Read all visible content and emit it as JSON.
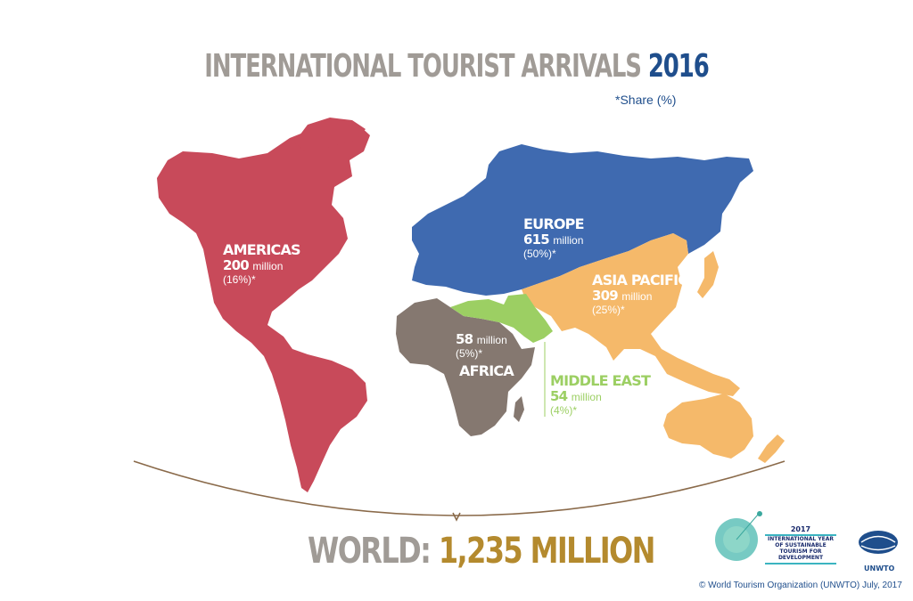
{
  "title": {
    "main": "INTERNATIONAL TOURIST ARRIVALS",
    "year": "2016",
    "subtitle": "*Share (%)"
  },
  "colors": {
    "americas": "#c84a5a",
    "europe": "#3f6ab0",
    "asia_pacific": "#f5b96a",
    "africa": "#857870",
    "middle_east": "#9ccf63",
    "world_value": "#b48a2e",
    "title_gray": "#a09b96",
    "title_blue": "#1f4e8c"
  },
  "regions": [
    {
      "id": "americas",
      "name": "AMERICAS",
      "arrivals": "200",
      "unit": "million",
      "share": "(16%)*"
    },
    {
      "id": "europe",
      "name": "EUROPE",
      "arrivals": "615",
      "unit": "million",
      "share": "(50%)*"
    },
    {
      "id": "asia_pacific",
      "name": "ASIA PACIFIC",
      "arrivals": "309",
      "unit": "million",
      "share": "(25%)*"
    },
    {
      "id": "africa",
      "name": "AFRICA",
      "arrivals": "58",
      "unit": "million",
      "share": "(5%)*"
    },
    {
      "id": "middle_east",
      "name": "MIDDLE EAST",
      "arrivals": "54",
      "unit": "million",
      "share": "(4%)*"
    }
  ],
  "world": {
    "label": "WORLD:",
    "value": "1,235 MILLION"
  },
  "logos": {
    "iy_year": "2017",
    "iy_text": "INTERNATIONAL YEAR OF SUSTAINABLE TOURISM FOR DEVELOPMENT",
    "unwto": "UNWTO"
  },
  "footer": {
    "copyright": "© World Tourism Organization (UNWTO) July, 2017"
  }
}
